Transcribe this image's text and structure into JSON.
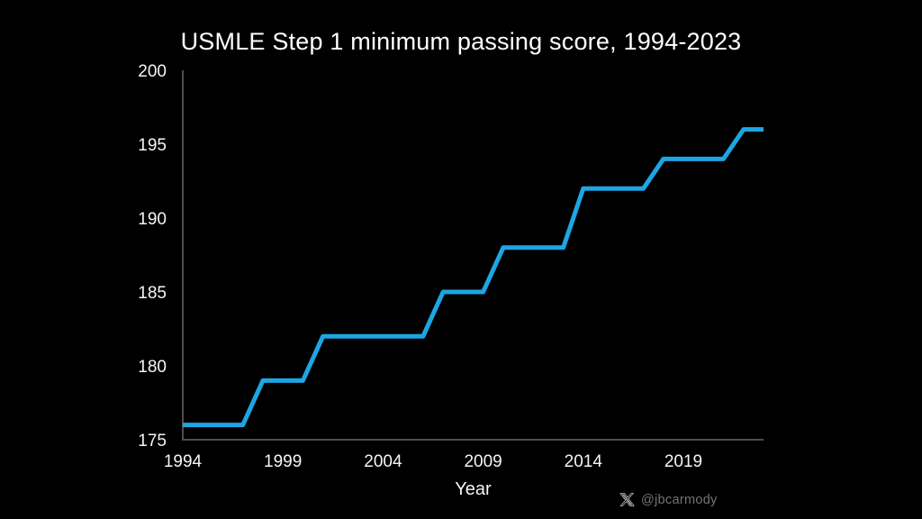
{
  "title": "USMLE Step 1 minimum passing score, 1994-2023",
  "chart_data": {
    "type": "line",
    "series_name": "USMLE Step 1 minimum passing score",
    "x": [
      1994,
      1995,
      1996,
      1997,
      1998,
      1999,
      2000,
      2001,
      2002,
      2003,
      2004,
      2005,
      2006,
      2007,
      2008,
      2009,
      2010,
      2011,
      2012,
      2013,
      2014,
      2015,
      2016,
      2017,
      2018,
      2019,
      2020,
      2021,
      2022,
      2023
    ],
    "values": [
      176,
      176,
      176,
      176,
      179,
      179,
      179,
      182,
      182,
      182,
      182,
      182,
      182,
      185,
      185,
      185,
      188,
      188,
      188,
      188,
      192,
      192,
      192,
      192,
      194,
      194,
      194,
      194,
      196,
      196
    ],
    "title": "USMLE Step 1 minimum passing score, 1994-2023",
    "xlabel": "Year",
    "ylabel": "",
    "xlim": [
      1994,
      2023
    ],
    "ylim": [
      175,
      200
    ],
    "xticks": [
      1994,
      1999,
      2004,
      2009,
      2014,
      2019
    ],
    "yticks": [
      175,
      180,
      185,
      190,
      195,
      200
    ],
    "grid": false,
    "legend": false,
    "line_color": "#1ea5e3",
    "line_width": 5,
    "axis_color": "#4d4d4d",
    "tick_text_color": "#f5f5f5",
    "background_color": "#000000"
  },
  "watermark": {
    "handle": "@jbcarmody",
    "logo": "x-logo"
  }
}
